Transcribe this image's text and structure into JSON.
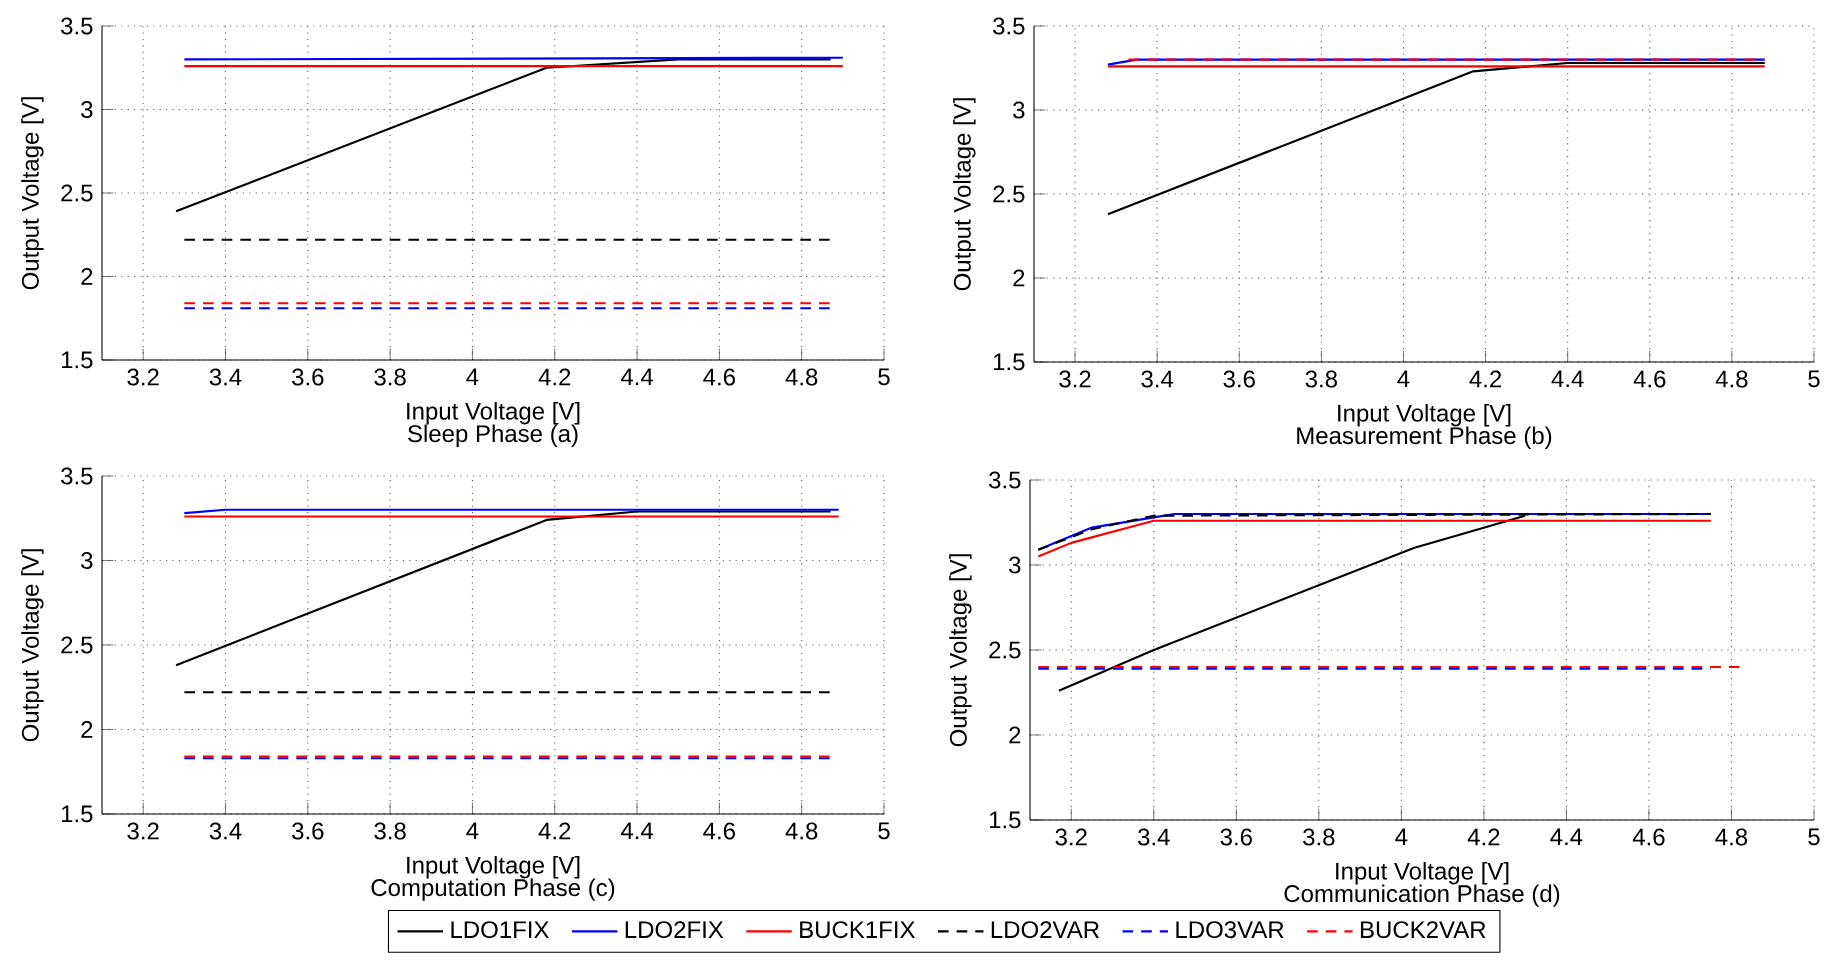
{
  "chart_data": [
    {
      "type": "line",
      "title": "Sleep Phase (a)",
      "xlabel": "Input Voltage [V]",
      "ylabel": "Output Voltage [V]",
      "xlim": [
        3.1,
        5
      ],
      "ylim": [
        1.5,
        3.5
      ],
      "xticks": [
        3.2,
        3.4,
        3.6,
        3.8,
        4,
        4.2,
        4.4,
        4.6,
        4.8,
        5
      ],
      "yticks": [
        1.5,
        2,
        2.5,
        3,
        3.5
      ],
      "grid": true,
      "series": [
        {
          "color": "#000000",
          "line_style": "solid",
          "x": [
            3.28,
            4.18,
            4.5,
            4.87
          ],
          "values": [
            2.39,
            3.25,
            3.3,
            3.3
          ]
        },
        {
          "color": "#0000ff",
          "line_style": "solid",
          "x": [
            3.3,
            4.9
          ],
          "values": [
            3.3,
            3.31
          ]
        },
        {
          "color": "#ff0000",
          "line_style": "solid",
          "x": [
            3.3,
            4.9
          ],
          "values": [
            3.26,
            3.26
          ]
        },
        {
          "color": "#000000",
          "line_style": "dashed",
          "x": [
            3.3,
            4.88
          ],
          "values": [
            2.22,
            2.22
          ]
        },
        {
          "color": "#0000ff",
          "line_style": "dashed",
          "x": [
            3.3,
            4.88
          ],
          "values": [
            1.81,
            1.81
          ]
        },
        {
          "color": "#ff0000",
          "line_style": "dashed",
          "x": [
            3.3,
            4.88
          ],
          "values": [
            1.84,
            1.84
          ]
        }
      ]
    },
    {
      "type": "line",
      "title": "Measurement Phase (b)",
      "xlabel": "Input Voltage [V]",
      "ylabel": "Output Voltage [V]",
      "xlim": [
        3.1,
        5
      ],
      "ylim": [
        1.5,
        3.5
      ],
      "xticks": [
        3.2,
        3.4,
        3.6,
        3.8,
        4,
        4.2,
        4.4,
        4.6,
        4.8,
        5
      ],
      "yticks": [
        1.5,
        2,
        2.5,
        3,
        3.5
      ],
      "grid": true,
      "series": [
        {
          "color": "#000000",
          "line_style": "solid",
          "x": [
            3.28,
            4.17,
            4.4,
            4.88
          ],
          "values": [
            2.38,
            3.23,
            3.28,
            3.28
          ]
        },
        {
          "color": "#0000ff",
          "line_style": "solid",
          "x": [
            3.28,
            3.35,
            4.88
          ],
          "values": [
            3.27,
            3.3,
            3.3
          ]
        },
        {
          "color": "#ff0000",
          "line_style": "solid",
          "x": [
            3.28,
            4.88
          ],
          "values": [
            3.26,
            3.26
          ]
        },
        {
          "color": "#ff0000",
          "line_style": "dashed",
          "x": [
            3.33,
            4.88
          ],
          "values": [
            3.3,
            3.3
          ]
        }
      ]
    },
    {
      "type": "line",
      "title": "Computation Phase (c)",
      "xlabel": "Input Voltage [V]",
      "ylabel": "Output Voltage [V]",
      "xlim": [
        3.1,
        5
      ],
      "ylim": [
        1.5,
        3.5
      ],
      "xticks": [
        3.2,
        3.4,
        3.6,
        3.8,
        4,
        4.2,
        4.4,
        4.6,
        4.8,
        5
      ],
      "yticks": [
        1.5,
        2,
        2.5,
        3,
        3.5
      ],
      "grid": true,
      "legend": "bottom",
      "series": [
        {
          "name": "LDO1FIX",
          "color": "#000000",
          "line_style": "solid",
          "x": [
            3.28,
            4.18,
            4.4,
            4.87
          ],
          "values": [
            2.38,
            3.24,
            3.29,
            3.29
          ]
        },
        {
          "name": "LDO2FIX",
          "color": "#0000ff",
          "line_style": "solid",
          "x": [
            3.3,
            3.4,
            4.89
          ],
          "values": [
            3.28,
            3.3,
            3.3
          ]
        },
        {
          "name": "BUCK1FIX",
          "color": "#ff0000",
          "line_style": "solid",
          "x": [
            3.3,
            4.89
          ],
          "values": [
            3.26,
            3.26
          ]
        },
        {
          "name": "LDO2VAR",
          "color": "#000000",
          "line_style": "dashed",
          "x": [
            3.3,
            4.88
          ],
          "values": [
            2.22,
            2.22
          ]
        },
        {
          "name": "LDO3VAR",
          "color": "#0000ff",
          "line_style": "dashed",
          "x": [
            3.3,
            4.88
          ],
          "values": [
            1.83,
            1.83
          ]
        },
        {
          "name": "BUCK2VAR",
          "color": "#ff0000",
          "line_style": "dashed",
          "x": [
            3.3,
            4.88
          ],
          "values": [
            1.84,
            1.84
          ]
        }
      ]
    },
    {
      "type": "line",
      "title": "Communication Phase (d)",
      "xlabel": "Input Voltage [V]",
      "ylabel": "Output Voltage [V]",
      "xlim": [
        3.1,
        5
      ],
      "ylim": [
        1.5,
        3.5
      ],
      "xticks": [
        3.2,
        3.4,
        3.6,
        3.8,
        4,
        4.2,
        4.4,
        4.6,
        4.8,
        5
      ],
      "yticks": [
        1.5,
        2,
        2.5,
        3,
        3.5
      ],
      "grid": true,
      "series": [
        {
          "color": "#000000",
          "line_style": "solid",
          "x": [
            3.17,
            3.4,
            4.03,
            4.3
          ],
          "values": [
            2.26,
            2.5,
            3.1,
            3.29
          ]
        },
        {
          "color": "#0000ff",
          "line_style": "solid",
          "x": [
            3.12,
            3.25,
            3.4,
            3.45,
            4.75
          ],
          "values": [
            3.09,
            3.22,
            3.28,
            3.3,
            3.3
          ]
        },
        {
          "color": "#ff0000",
          "line_style": "solid",
          "x": [
            3.12,
            3.2,
            3.4,
            4.75
          ],
          "values": [
            3.05,
            3.13,
            3.26,
            3.26
          ]
        },
        {
          "color": "#000000",
          "line_style": "dashed",
          "x": [
            3.12,
            3.25,
            3.4,
            4.75
          ],
          "values": [
            3.09,
            3.21,
            3.29,
            3.3
          ]
        },
        {
          "color": "#0000ff",
          "line_style": "dashed",
          "x": [
            3.12,
            4.75
          ],
          "values": [
            2.39,
            2.39
          ]
        },
        {
          "color": "#ff0000",
          "line_style": "dashed",
          "x": [
            3.12,
            4.83
          ],
          "values": [
            2.4,
            2.4
          ]
        }
      ]
    }
  ]
}
